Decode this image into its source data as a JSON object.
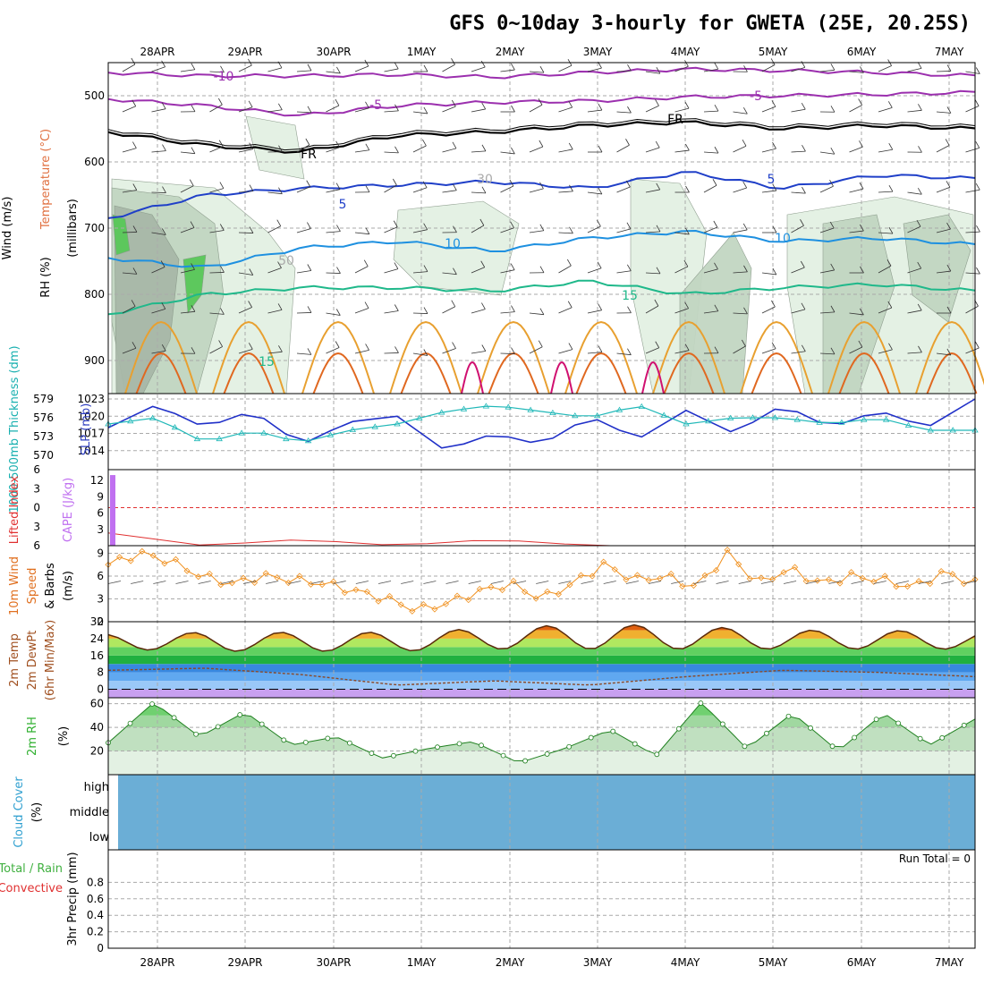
{
  "title": "GFS 0~10day 3-hourly for GWETA (25E, 20.25S)",
  "date_labels": [
    "28APR",
    "29APR",
    "30APR",
    "1MAY",
    "2MAY",
    "3MAY",
    "4MAY",
    "5MAY",
    "6MAY",
    "7MAY"
  ],
  "colors": {
    "grid": "#aaaaaa",
    "frame": "#000000",
    "rh_light": "#e3f1e3",
    "rh_mid": "#c2d6c2",
    "rh_dark": "#a8b8a8",
    "rh_green": "#58c858",
    "cloud": "#6baed6",
    "t_purple": "#9b2fae",
    "t_black": "#000000",
    "t_blue": "#1f3fc8",
    "t_lblue": "#1e90e0",
    "t_teal": "#1fb88a",
    "t_orange": "#e8a030",
    "t_dorange": "#e06820",
    "t_magenta": "#d01070",
    "slp": "#2030c8",
    "thick": "#20b8b8",
    "li": "#e03030",
    "cape": "#c070f0",
    "wind": "#f0901e",
    "barb": "#505050",
    "temp_line": "#5a2a0a",
    "dew_line": "#8a4a2a",
    "rh_line": "#208020"
  },
  "chart_data": [
    {
      "type": "line",
      "panel": "upper-air",
      "labels": {
        "wind": "Wind (m/s)",
        "temp": "Temperature (°C)",
        "rh": "RH (%)",
        "axis": "(millibars)"
      },
      "ylim": [
        950,
        450
      ],
      "yticks": [
        500,
        600,
        700,
        800,
        900
      ],
      "grid": true,
      "isotherms": [
        {
          "label": "-10",
          "color": "purple",
          "values": [
            465,
            470,
            470,
            468,
            472,
            465,
            460,
            462,
            465,
            470
          ]
        },
        {
          "label": "-5",
          "color": "purple",
          "values": [
            505,
            515,
            530,
            515,
            510,
            508,
            502,
            500,
            498,
            495
          ]
        },
        {
          "label": "FR",
          "color": "black",
          "values": [
            555,
            575,
            585,
            560,
            555,
            545,
            540,
            550,
            545,
            550
          ]
        },
        {
          "label": "5",
          "color": "blue",
          "values": [
            685,
            650,
            640,
            635,
            630,
            640,
            615,
            640,
            620,
            625
          ]
        },
        {
          "label": "10",
          "color": "lightblue",
          "values": [
            745,
            760,
            730,
            720,
            735,
            715,
            705,
            720,
            715,
            725
          ]
        },
        {
          "label": "15",
          "color": "teal",
          "values": [
            830,
            800,
            790,
            790,
            795,
            780,
            800,
            790,
            785,
            795
          ]
        }
      ],
      "contour_labels": [
        "-10",
        "-5",
        "FR",
        "5",
        "10",
        "15",
        "10",
        "30",
        "50"
      ]
    },
    {
      "type": "line",
      "panel": "slp-thickness",
      "labels": {
        "slp": "SLP (mb)",
        "thickness": "1000-500mb Thickness (dm)"
      },
      "slp_ticks": [
        1014,
        1017,
        1020,
        1023
      ],
      "thickness_ticks": [
        570,
        573,
        576,
        579
      ],
      "slp": [
        1018,
        1022,
        1018,
        1021,
        1015,
        1019,
        1020,
        1014,
        1017,
        1015,
        1020,
        1016,
        1021,
        1017,
        1022,
        1018,
        1021,
        1018,
        1023
      ],
      "thickness": [
        575,
        576,
        572,
        574,
        572,
        574,
        575,
        577,
        578,
        577,
        576,
        578,
        575,
        576,
        576,
        575,
        576,
        574,
        574
      ]
    },
    {
      "type": "bar",
      "panel": "stability",
      "labels": {
        "li": "Lifted Index",
        "cape": "CAPE (J/kg)"
      },
      "li_ticks": [
        -6,
        -3,
        0,
        3,
        6
      ],
      "cape_ticks": [
        3,
        6,
        9,
        12
      ],
      "cape": [
        13,
        0,
        0,
        0,
        0,
        0,
        0,
        0,
        0,
        0
      ],
      "lifted_index": [
        4,
        6,
        5,
        6,
        5,
        6,
        6,
        6,
        6,
        6
      ]
    },
    {
      "type": "line",
      "panel": "surface-wind",
      "labels": {
        "main": "10m Wind Speed & Barbs",
        "units": "(m/s)"
      },
      "yticks": [
        0,
        3,
        6,
        9
      ],
      "ylim": [
        0,
        10
      ],
      "speed": [
        7.5,
        9,
        8,
        6,
        5,
        6,
        5.5,
        5,
        4,
        3,
        1.5,
        2.5,
        4,
        5,
        3,
        5,
        7.5,
        5.5,
        6,
        4.5,
        9,
        5,
        7,
        5,
        6,
        5.5,
        4.5,
        6.5,
        5
      ]
    },
    {
      "type": "area",
      "panel": "surface-temp",
      "labels": {
        "temp": "2m Temp",
        "dewpt": "2m DewPt",
        "minmax": "(6hr Min/Max)"
      },
      "yticks": [
        0,
        8,
        16,
        24,
        32
      ],
      "ylim": [
        -4,
        32
      ],
      "temp_max": [
        26,
        27,
        27,
        27,
        29,
        31,
        30,
        28,
        28,
        27
      ],
      "temp_min": [
        19,
        18,
        18,
        18,
        19,
        19,
        19,
        19,
        19,
        19
      ],
      "dewpoint": [
        9,
        10,
        7,
        2,
        4,
        2,
        6,
        9,
        8,
        6
      ]
    },
    {
      "type": "area",
      "panel": "surface-rh",
      "labels": {
        "rh": "2m RH",
        "units": "(%)"
      },
      "yticks": [
        20,
        40,
        60
      ],
      "ylim": [
        0,
        65
      ],
      "rh": [
        27,
        61,
        32,
        53,
        25,
        32,
        14,
        22,
        28,
        10,
        22,
        38,
        16,
        61,
        22,
        52,
        20,
        52,
        25,
        47
      ]
    },
    {
      "type": "area",
      "panel": "clouds",
      "labels": {
        "main": "Cloud Cover",
        "units": "(%)",
        "levels": [
          "high",
          "middle",
          "low"
        ]
      },
      "cover": {
        "high": 100,
        "middle": 100,
        "low": 100
      }
    },
    {
      "type": "bar",
      "panel": "precip",
      "labels": {
        "main": "3hr Precip (mm)",
        "total": "Total / Rain",
        "convective": "Convective",
        "run_total": "Run Total = 0"
      },
      "yticks": [
        0,
        0.2,
        0.4,
        0.6,
        0.8
      ],
      "ylim": [
        0,
        1
      ],
      "precip_total": [
        0,
        0,
        0,
        0,
        0,
        0,
        0,
        0,
        0,
        0
      ]
    }
  ]
}
